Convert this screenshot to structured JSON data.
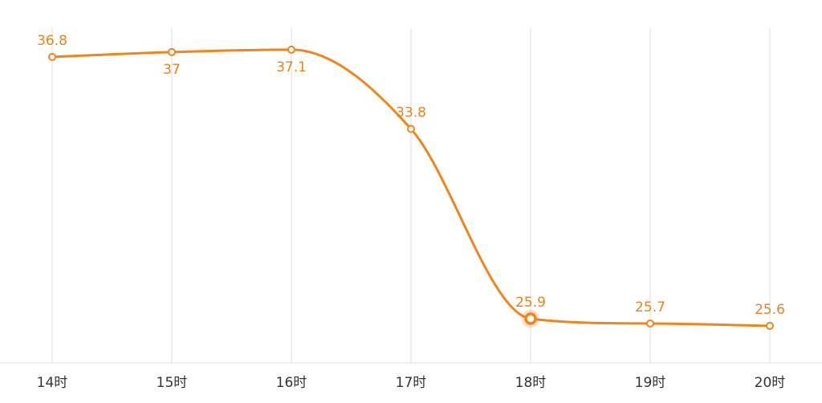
{
  "chart_data": {
    "type": "line",
    "categories": [
      "14时",
      "15时",
      "16时",
      "17时",
      "18时",
      "19时",
      "20时"
    ],
    "series": [
      {
        "values": [
          36.8,
          37,
          37.1,
          33.8,
          25.9,
          25.7,
          25.6
        ],
        "color": "#f08519"
      }
    ],
    "ylim": [
      24.06,
      39.17
    ],
    "highlight": 4,
    "grid": true
  }
}
